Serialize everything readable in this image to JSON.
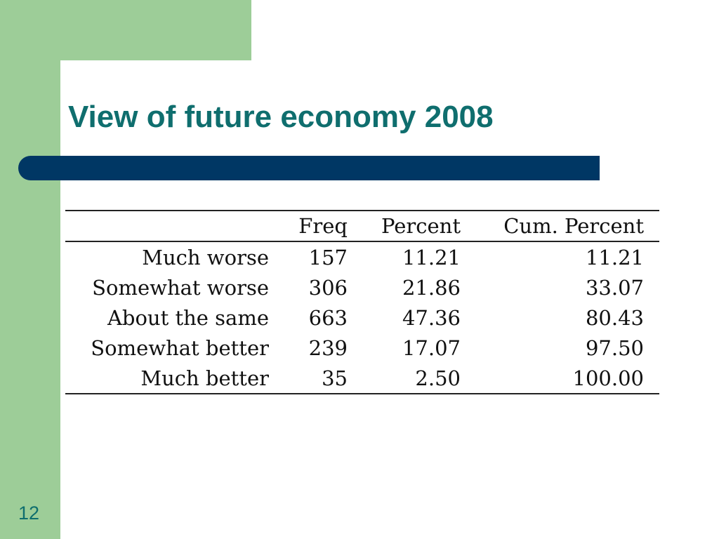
{
  "slide": {
    "title": "View of future economy 2008",
    "page_number": "12",
    "colors": {
      "accent_green": "#9dcd98",
      "title_teal": "#0f6e6e",
      "rule_navy": "#003764"
    }
  },
  "table": {
    "headers": {
      "label": "",
      "freq": "Freq",
      "percent": "Percent",
      "cum_percent": "Cum. Percent"
    },
    "rows": [
      {
        "label": "Much worse",
        "freq": "157",
        "percent": "11.21",
        "cum_percent": "11.21"
      },
      {
        "label": "Somewhat worse",
        "freq": "306",
        "percent": "21.86",
        "cum_percent": "33.07"
      },
      {
        "label": "About the same",
        "freq": "663",
        "percent": "47.36",
        "cum_percent": "80.43"
      },
      {
        "label": "Somewhat better",
        "freq": "239",
        "percent": "17.07",
        "cum_percent": "97.50"
      },
      {
        "label": "Much better",
        "freq": "35",
        "percent": "2.50",
        "cum_percent": "100.00"
      }
    ]
  }
}
